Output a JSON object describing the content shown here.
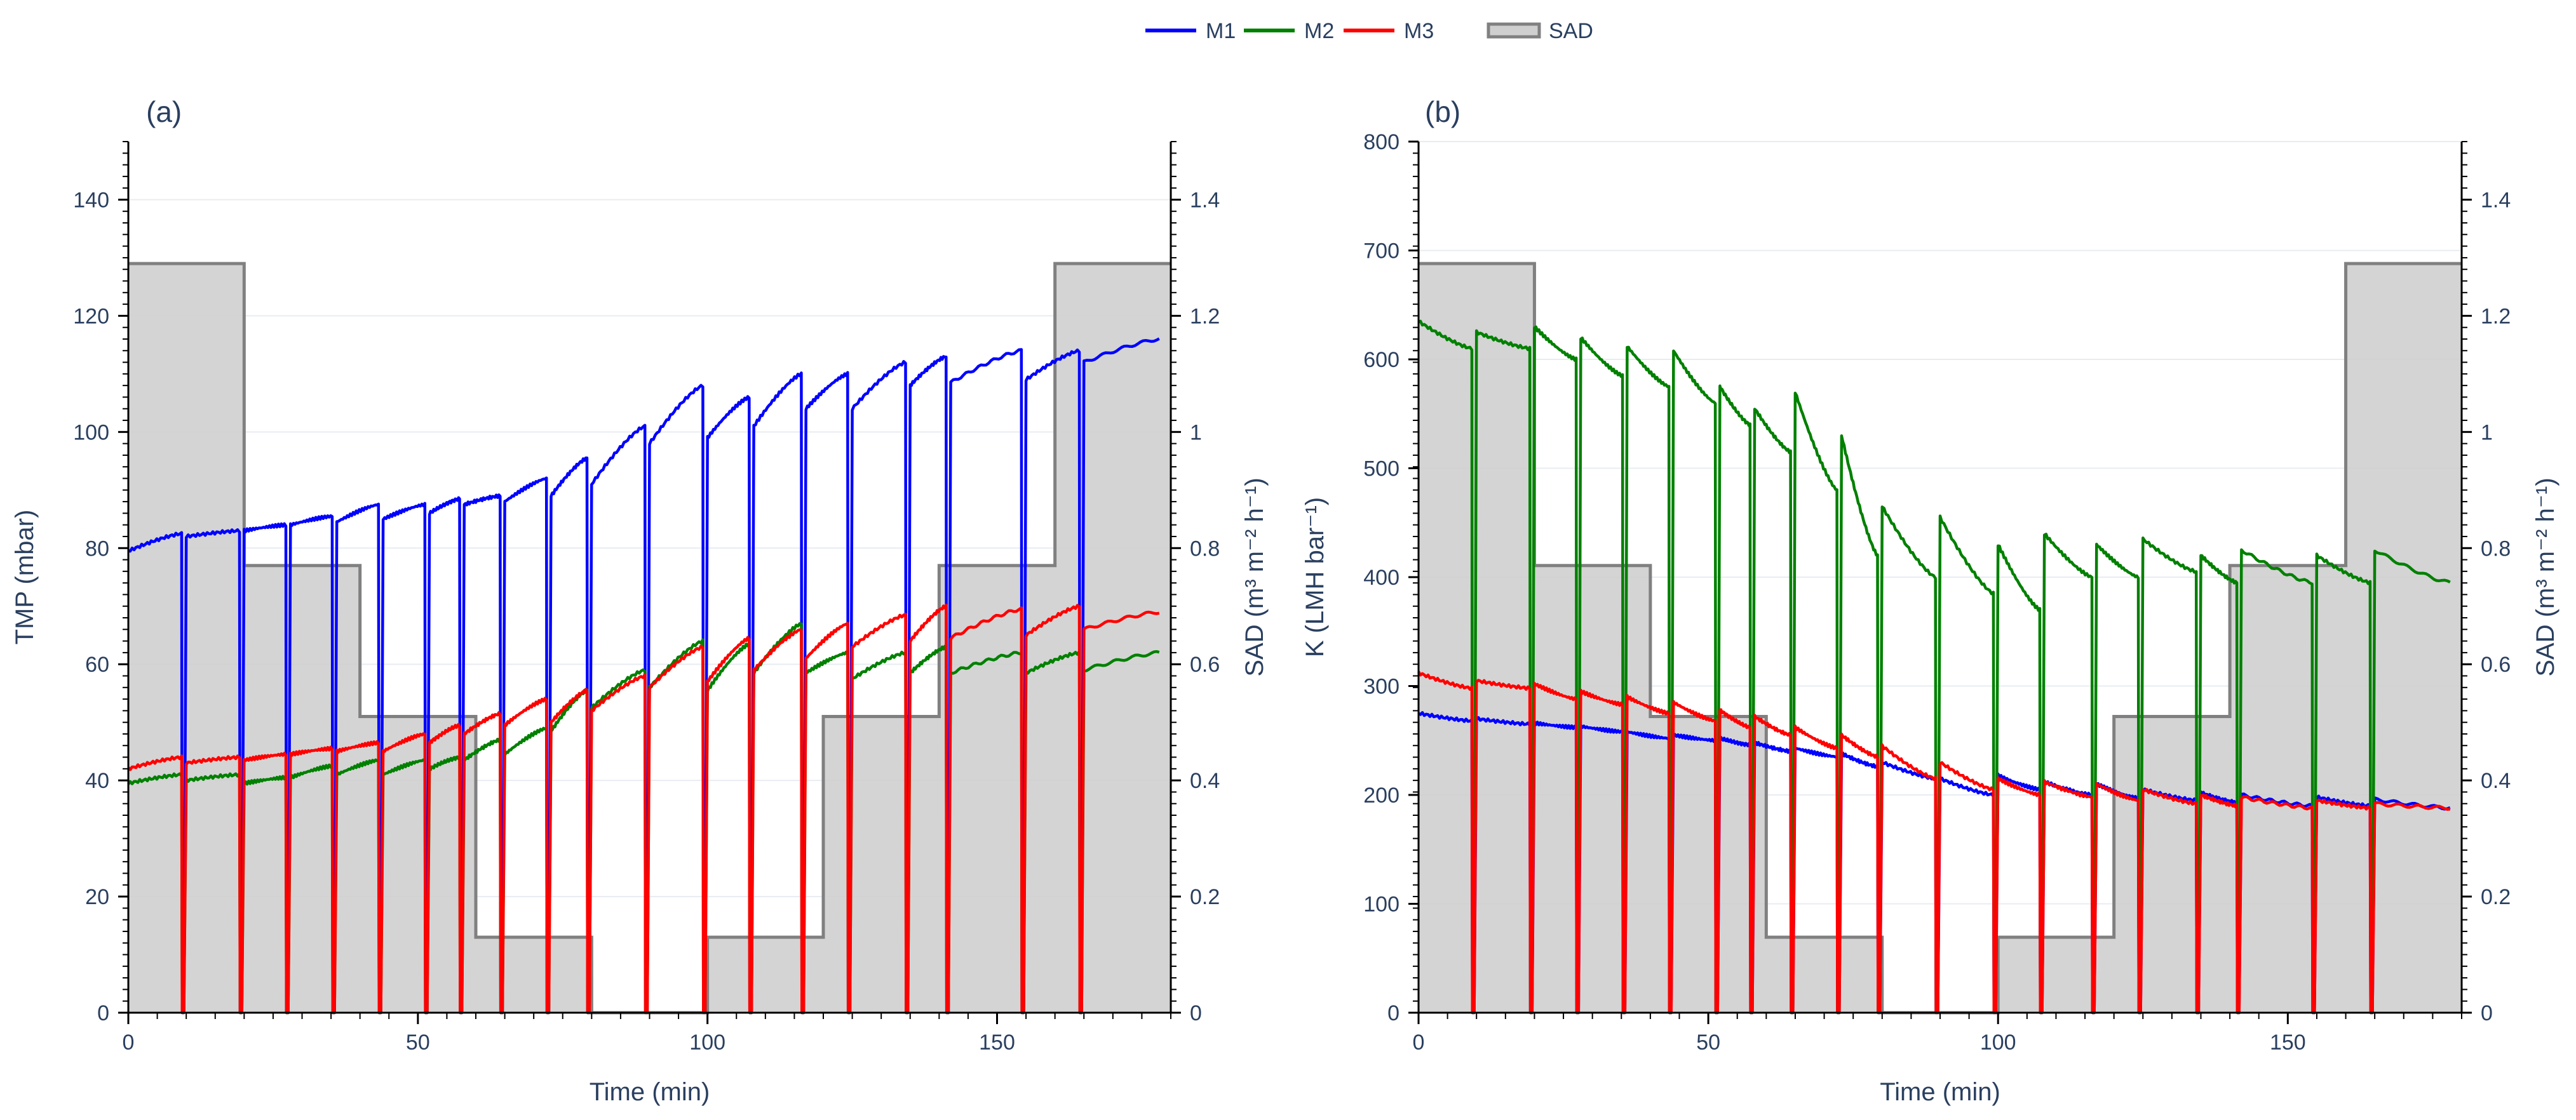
{
  "legend": {
    "items": [
      {
        "label": "M1",
        "color": "#0000ff",
        "kind": "line"
      },
      {
        "label": "M2",
        "color": "#008000",
        "kind": "line"
      },
      {
        "label": "M3",
        "color": "#ff0000",
        "kind": "line"
      },
      {
        "label": "SAD",
        "color": "#808080",
        "kind": "area"
      }
    ]
  },
  "chart_data": [
    {
      "panel_label": "(a)",
      "type": "line",
      "xlabel": "Time (min)",
      "ylabel": "TMP (mbar)",
      "y2label": "SAD (m³ m⁻² h⁻¹)",
      "xlim": [
        0,
        180
      ],
      "ylim": [
        0,
        150
      ],
      "y2lim": [
        0,
        1.5
      ],
      "xticks": [
        0,
        50,
        100,
        150
      ],
      "yticks": [
        0,
        20,
        40,
        60,
        80,
        100,
        120,
        140
      ],
      "y2ticks": [
        0,
        0.2,
        0.4,
        0.6,
        0.8,
        1,
        1.2,
        1.4
      ],
      "sad_steps": [
        {
          "start": 0,
          "end": 20,
          "value": 1.29
        },
        {
          "start": 20,
          "end": 40,
          "value": 0.77
        },
        {
          "start": 40,
          "end": 60,
          "value": 0.51
        },
        {
          "start": 60,
          "end": 80,
          "value": 0.13
        },
        {
          "start": 80,
          "end": 100,
          "value": 0
        },
        {
          "start": 100,
          "end": 120,
          "value": 0.13
        },
        {
          "start": 120,
          "end": 140,
          "value": 0.51
        },
        {
          "start": 140,
          "end": 160,
          "value": 0.77
        },
        {
          "start": 160,
          "end": 180,
          "value": 1.29
        }
      ],
      "series": [
        {
          "name": "M1",
          "color": "#0000ff",
          "cycles": [
            [
              0,
              79.5,
              82.5
            ],
            [
              10,
              82,
              83
            ],
            [
              20,
              83,
              84
            ],
            [
              28,
              84,
              85.5
            ],
            [
              36,
              84.5,
              87.5
            ],
            [
              44,
              85,
              87.5
            ],
            [
              52,
              86,
              88.5
            ],
            [
              58,
              87.5,
              89
            ],
            [
              65,
              88,
              92
            ],
            [
              73,
              89,
              95.5
            ],
            [
              80,
              91,
              101
            ],
            [
              90,
              98,
              108
            ],
            [
              100,
              99,
              106
            ],
            [
              108,
              101,
              110
            ],
            [
              117,
              104,
              110
            ],
            [
              125,
              104,
              112
            ],
            [
              135,
              108,
              113
            ],
            [
              142,
              108.5,
              114
            ],
            [
              155,
              109,
              114
            ],
            [
              165,
              112,
              116
            ]
          ]
        },
        {
          "name": "M2",
          "color": "#008000",
          "cycles": [
            [
              0,
              39.5,
              41
            ],
            [
              10,
              40,
              41
            ],
            [
              20,
              39.5,
              40.5
            ],
            [
              28,
              40.5,
              42.5
            ],
            [
              36,
              41,
              43.5
            ],
            [
              44,
              41,
              43.5
            ],
            [
              52,
              42,
              44
            ],
            [
              58,
              43.5,
              47
            ],
            [
              65,
              44.5,
              49
            ],
            [
              73,
              48.5,
              55.5
            ],
            [
              80,
              52.5,
              59
            ],
            [
              90,
              56,
              64
            ],
            [
              100,
              55.5,
              63.5
            ],
            [
              108,
              58.5,
              67
            ],
            [
              117,
              58.5,
              62
            ],
            [
              125,
              57.5,
              62
            ],
            [
              135,
              58.5,
              63
            ],
            [
              142,
              58.5,
              62
            ],
            [
              155,
              58.5,
              62
            ],
            [
              165,
              59,
              62
            ]
          ]
        },
        {
          "name": "M3",
          "color": "#ff0000",
          "cycles": [
            [
              0,
              42,
              44
            ],
            [
              10,
              43,
              44
            ],
            [
              20,
              43.5,
              44.5
            ],
            [
              28,
              44.5,
              45.5
            ],
            [
              36,
              45,
              46.5
            ],
            [
              44,
              45,
              48
            ],
            [
              52,
              46.5,
              49.5
            ],
            [
              58,
              48,
              51.5
            ],
            [
              65,
              49.5,
              54
            ],
            [
              73,
              50,
              55.5
            ],
            [
              80,
              52,
              58
            ],
            [
              90,
              56,
              63
            ],
            [
              100,
              57,
              64.5
            ],
            [
              108,
              59,
              66
            ],
            [
              117,
              61,
              67
            ],
            [
              125,
              63,
              68.5
            ],
            [
              135,
              64,
              70
            ],
            [
              142,
              64.5,
              69.5
            ],
            [
              155,
              65,
              70
            ],
            [
              165,
              66,
              69
            ]
          ]
        }
      ]
    },
    {
      "panel_label": "(b)",
      "type": "line",
      "xlabel": "Time (min)",
      "ylabel": "K (LMH bar⁻¹)",
      "y2label": "SAD (m³ m⁻² h⁻¹)",
      "xlim": [
        0,
        180
      ],
      "ylim": [
        0,
        800
      ],
      "y2lim": [
        0,
        1.5
      ],
      "xticks": [
        0,
        50,
        100,
        150
      ],
      "yticks": [
        0,
        100,
        200,
        300,
        400,
        500,
        600,
        700,
        800
      ],
      "y2ticks": [
        0,
        0.2,
        0.4,
        0.6,
        0.8,
        1,
        1.2,
        1.4
      ],
      "sad_steps": [
        {
          "start": 0,
          "end": 20,
          "value": 1.29
        },
        {
          "start": 20,
          "end": 40,
          "value": 0.77
        },
        {
          "start": 40,
          "end": 60,
          "value": 0.51
        },
        {
          "start": 60,
          "end": 80,
          "value": 0.13
        },
        {
          "start": 80,
          "end": 100,
          "value": 0
        },
        {
          "start": 100,
          "end": 120,
          "value": 0.13
        },
        {
          "start": 120,
          "end": 140,
          "value": 0.51
        },
        {
          "start": 140,
          "end": 160,
          "value": 0.77
        },
        {
          "start": 160,
          "end": 180,
          "value": 1.29
        }
      ],
      "series": [
        {
          "name": "M1",
          "color": "#0000ff",
          "cycles": [
            [
              0,
              275,
              268
            ],
            [
              10,
              270,
              265
            ],
            [
              20,
              266,
              262
            ],
            [
              28,
              263,
              258
            ],
            [
              36,
              258,
              252
            ],
            [
              44,
              255,
              250
            ],
            [
              52,
              252,
              246
            ],
            [
              58,
              248,
              240
            ],
            [
              65,
              243,
              235
            ],
            [
              73,
              238,
              226
            ],
            [
              80,
              230,
              215
            ],
            [
              90,
              215,
              200
            ],
            [
              100,
              218,
              205
            ],
            [
              108,
              212,
              200
            ],
            [
              117,
              210,
              197
            ],
            [
              125,
              205,
              195
            ],
            [
              135,
              202,
              193
            ],
            [
              142,
              200,
              190
            ],
            [
              155,
              198,
              190
            ],
            [
              165,
              196,
              188
            ]
          ]
        },
        {
          "name": "M2",
          "color": "#008000",
          "cycles": [
            [
              0,
              635,
              610
            ],
            [
              10,
              625,
              610
            ],
            [
              20,
              630,
              600
            ],
            [
              28,
              620,
              585
            ],
            [
              36,
              612,
              575
            ],
            [
              44,
              608,
              560
            ],
            [
              52,
              575,
              540
            ],
            [
              58,
              555,
              515
            ],
            [
              65,
              570,
              480
            ],
            [
              73,
              530,
              420
            ],
            [
              80,
              465,
              400
            ],
            [
              90,
              455,
              385
            ],
            [
              100,
              430,
              370
            ],
            [
              108,
              440,
              400
            ],
            [
              117,
              430,
              400
            ],
            [
              125,
              435,
              405
            ],
            [
              135,
              420,
              395
            ],
            [
              142,
              425,
              395
            ],
            [
              155,
              420,
              395
            ],
            [
              165,
              425,
              395
            ]
          ]
        },
        {
          "name": "M3",
          "color": "#ff0000",
          "cycles": [
            [
              0,
              312,
              298
            ],
            [
              10,
              305,
              298
            ],
            [
              20,
              302,
              288
            ],
            [
              28,
              295,
              283
            ],
            [
              36,
              290,
              275
            ],
            [
              44,
              285,
              268
            ],
            [
              52,
              278,
              262
            ],
            [
              58,
              272,
              255
            ],
            [
              65,
              262,
              243
            ],
            [
              73,
              255,
              235
            ],
            [
              80,
              245,
              215
            ],
            [
              90,
              230,
              205
            ],
            [
              100,
              215,
              200
            ],
            [
              108,
              212,
              198
            ],
            [
              117,
              210,
              195
            ],
            [
              125,
              205,
              192
            ],
            [
              135,
              200,
              190
            ],
            [
              142,
              198,
              188
            ],
            [
              155,
              195,
              188
            ],
            [
              165,
              192,
              188
            ]
          ]
        }
      ]
    }
  ]
}
